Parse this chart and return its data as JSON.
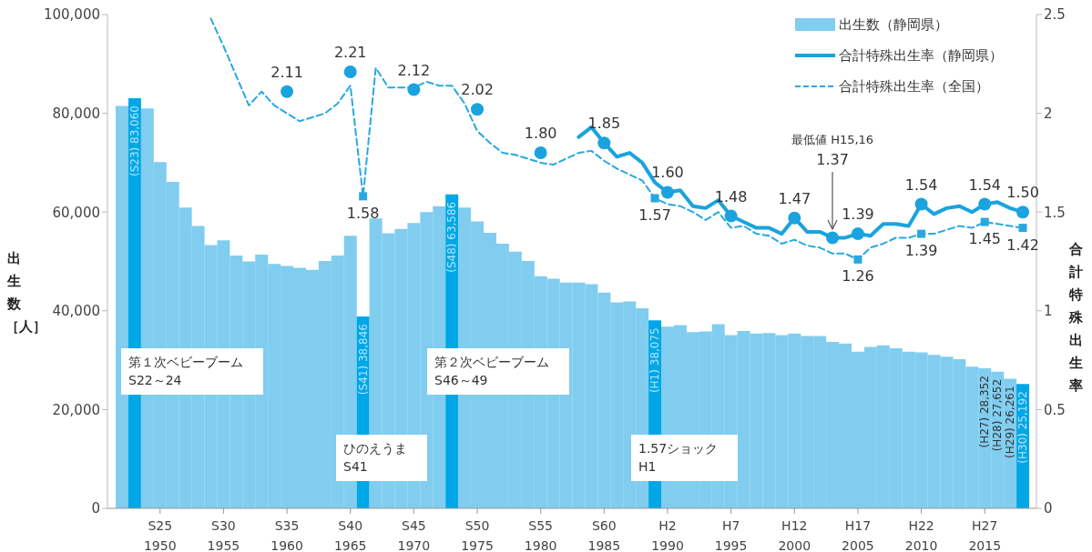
{
  "chart_data": {
    "type": "bar",
    "legend": "top right",
    "ylabel": "出生数［人］",
    "y2label": "合計特殊出生率",
    "categories": [
      null,
      null,
      null,
      "S25\n1950",
      null,
      null,
      null,
      null,
      "S30\n1955",
      null,
      null,
      null,
      null,
      "S35\n1960",
      null,
      null,
      null,
      null,
      "S40\n1965",
      null,
      null,
      null,
      null,
      "S45\n1970",
      null,
      null,
      null,
      null,
      "S50\n1975",
      null,
      null,
      null,
      null,
      "S55\n1980",
      null,
      null,
      null,
      null,
      "S60\n1985",
      null,
      null,
      null,
      null,
      "H2\n1990",
      null,
      null,
      null,
      null,
      "H7\n1995",
      null,
      null,
      null,
      null,
      "H12\n2000",
      null,
      null,
      null,
      null,
      "H17\n2005",
      null,
      null,
      null,
      null,
      "H22\n2010",
      null,
      null,
      null,
      null,
      "H27\n2015",
      null,
      null,
      null
    ],
    "ylim": [
      0,
      100000
    ],
    "yticks": [
      0,
      {
        "value": 20000,
        "label": "20,000"
      },
      {
        "value": 40000,
        "label": "40,000"
      },
      {
        "value": 60000,
        "label": "60,000"
      },
      {
        "value": 80000,
        "label": "80,000"
      },
      {
        "value": 100000,
        "label": "100,000"
      }
    ],
    "y2lim": [
      0,
      2.5
    ],
    "y2ticks": [
      0,
      0.5,
      1,
      1.5,
      2,
      2.5
    ],
    "series": [
      {
        "name": "出生数（静岡県）",
        "color": "#80cdf0",
        "colors": [
          "#80cdf0",
          "#00a7e6",
          "#80cdf0",
          "#80cdf0",
          "#80cdf0",
          "#80cdf0",
          "#80cdf0",
          "#80cdf0",
          "#80cdf0",
          "#80cdf0",
          "#80cdf0",
          "#80cdf0",
          "#80cdf0",
          "#80cdf0",
          "#80cdf0",
          "#80cdf0",
          "#80cdf0",
          "#80cdf0",
          "#80cdf0",
          "#00a7e6",
          "#80cdf0",
          "#80cdf0",
          "#80cdf0",
          "#80cdf0",
          "#80cdf0",
          "#80cdf0",
          "#00a7e6",
          "#80cdf0",
          "#80cdf0",
          "#80cdf0",
          "#80cdf0",
          "#80cdf0",
          "#80cdf0",
          "#80cdf0",
          "#80cdf0",
          "#80cdf0",
          "#80cdf0",
          "#80cdf0",
          "#80cdf0",
          "#80cdf0",
          "#80cdf0",
          "#80cdf0",
          "#00a7e6",
          "#80cdf0",
          "#80cdf0",
          "#80cdf0",
          "#80cdf0",
          "#80cdf0",
          "#80cdf0",
          "#80cdf0",
          "#80cdf0",
          "#80cdf0",
          "#80cdf0",
          "#80cdf0",
          "#80cdf0",
          "#80cdf0",
          "#80cdf0",
          "#80cdf0",
          "#80cdf0",
          "#80cdf0",
          "#80cdf0",
          "#80cdf0",
          "#80cdf0",
          "#80cdf0",
          "#80cdf0",
          "#80cdf0",
          "#80cdf0",
          "#80cdf0",
          "#80cdf0",
          "#80cdf0",
          "#80cdf0",
          "#00a7e6"
        ],
        "values": [
          81500,
          83060,
          81000,
          70100,
          66100,
          60900,
          57200,
          53300,
          54300,
          51200,
          50000,
          51400,
          49500,
          49100,
          48700,
          48300,
          50100,
          51200,
          55200,
          38846,
          58700,
          55700,
          56600,
          57800,
          60000,
          61200,
          63586,
          60900,
          58100,
          55800,
          53600,
          52000,
          50100,
          47000,
          46500,
          45700,
          45700,
          45400,
          43700,
          41700,
          41900,
          40500,
          38075,
          36800,
          37100,
          35700,
          35800,
          37300,
          35100,
          35900,
          35400,
          35500,
          35100,
          35400,
          34900,
          34900,
          33700,
          33400,
          31700,
          32700,
          33000,
          32400,
          31700,
          31600,
          31100,
          30700,
          30200,
          28700,
          28352,
          27652,
          26261,
          25192
        ],
        "value_labels": [
          null,
          "(S23) 83,060",
          null,
          null,
          null,
          null,
          null,
          null,
          null,
          null,
          null,
          null,
          null,
          null,
          null,
          null,
          null,
          null,
          null,
          "(S41) 38,846",
          null,
          null,
          null,
          null,
          null,
          null,
          "(S48) 63,586",
          null,
          null,
          null,
          null,
          null,
          null,
          null,
          null,
          null,
          null,
          null,
          null,
          null,
          null,
          null,
          "(H1) 38,075",
          null,
          null,
          null,
          null,
          null,
          null,
          null,
          null,
          null,
          null,
          null,
          null,
          null,
          null,
          null,
          null,
          null,
          null,
          null,
          null,
          null,
          null,
          null,
          null,
          null,
          "(H27) 28,352",
          "(H28) 27,652",
          "(H29) 26,261",
          "(H30) 25,192"
        ]
      },
      {
        "name": "合計特殊出生率（静岡県）",
        "type": "line",
        "axis": "y2",
        "color": "#1aa3de",
        "line_style": "solid",
        "values": [
          null,
          null,
          null,
          null,
          null,
          null,
          null,
          null,
          null,
          null,
          null,
          null,
          null,
          null,
          null,
          null,
          null,
          null,
          null,
          null,
          null,
          null,
          null,
          null,
          null,
          null,
          null,
          null,
          null,
          null,
          null,
          null,
          null,
          null,
          null,
          null,
          1.88,
          1.93,
          1.85,
          1.78,
          1.8,
          1.75,
          1.65,
          1.6,
          1.61,
          1.53,
          1.52,
          1.56,
          1.48,
          1.45,
          1.42,
          1.42,
          1.39,
          1.47,
          1.4,
          1.4,
          1.37,
          1.37,
          1.39,
          1.38,
          1.44,
          1.44,
          1.43,
          1.54,
          1.49,
          1.52,
          1.53,
          1.5,
          1.54,
          1.55,
          1.52,
          1.5
        ]
      },
      {
        "name": "合計特殊出生率（全国）",
        "type": "line",
        "axis": "y2",
        "color": "#29a8e0",
        "line_style": "dashed",
        "values": [
          null,
          null,
          null,
          null,
          null,
          null,
          null,
          2.48,
          2.34,
          2.19,
          2.04,
          2.11,
          2.04,
          2.0,
          1.96,
          1.98,
          2.0,
          2.05,
          2.14,
          1.58,
          2.23,
          2.13,
          2.13,
          2.13,
          2.16,
          2.14,
          2.14,
          2.05,
          1.91,
          1.85,
          1.8,
          1.79,
          1.77,
          1.75,
          1.74,
          1.77,
          1.8,
          1.81,
          1.76,
          1.72,
          1.69,
          1.66,
          1.57,
          1.54,
          1.53,
          1.5,
          1.46,
          1.5,
          1.42,
          1.43,
          1.39,
          1.38,
          1.34,
          1.36,
          1.33,
          1.32,
          1.29,
          1.29,
          1.26,
          1.32,
          1.34,
          1.37,
          1.37,
          1.39,
          1.39,
          1.41,
          1.43,
          1.42,
          1.45,
          1.44,
          1.43,
          1.42
        ]
      },
      {
        "type": "scatter",
        "axis": "y2",
        "color": "#1aa3de",
        "marker": "circle",
        "values": [
          null,
          null,
          null,
          null,
          null,
          null,
          null,
          null,
          null,
          null,
          null,
          null,
          null,
          2.11,
          null,
          null,
          null,
          null,
          2.21,
          null,
          null,
          null,
          null,
          2.12,
          null,
          null,
          null,
          null,
          2.02,
          null,
          null,
          null,
          null,
          1.8,
          null,
          null,
          null,
          null,
          1.85,
          null,
          null,
          null,
          null,
          1.6,
          null,
          null,
          null,
          null,
          1.48,
          null,
          null,
          null,
          null,
          1.47,
          null,
          null,
          1.37,
          null,
          1.39,
          null,
          null,
          null,
          null,
          1.54,
          null,
          null,
          null,
          null,
          1.54,
          null,
          null,
          1.5
        ],
        "value_labels": [
          null,
          null,
          null,
          null,
          null,
          null,
          null,
          null,
          null,
          null,
          null,
          null,
          null,
          "2.11",
          null,
          null,
          null,
          null,
          "2.21",
          null,
          null,
          null,
          null,
          "2.12",
          null,
          null,
          null,
          null,
          "2.02",
          null,
          null,
          null,
          null,
          "1.80",
          null,
          null,
          null,
          null,
          "1.85",
          null,
          null,
          null,
          null,
          "1.60",
          null,
          null,
          null,
          null,
          "1.48",
          null,
          null,
          null,
          null,
          "1.47",
          null,
          null,
          "1.37",
          null,
          "1.39",
          null,
          null,
          null,
          null,
          "1.54",
          null,
          null,
          null,
          null,
          "1.54",
          null,
          null,
          "1.50"
        ]
      },
      {
        "type": "scatter",
        "axis": "y2",
        "color": "#29a8e0",
        "marker": "square",
        "values": [
          null,
          null,
          null,
          null,
          null,
          null,
          null,
          null,
          null,
          null,
          null,
          null,
          null,
          null,
          null,
          null,
          null,
          null,
          null,
          1.58,
          null,
          null,
          null,
          null,
          null,
          null,
          null,
          null,
          null,
          null,
          null,
          null,
          null,
          null,
          null,
          null,
          null,
          null,
          null,
          null,
          null,
          null,
          1.57,
          null,
          null,
          null,
          null,
          null,
          null,
          null,
          null,
          null,
          null,
          null,
          null,
          null,
          null,
          null,
          1.26,
          null,
          null,
          null,
          null,
          1.39,
          null,
          null,
          null,
          null,
          1.45,
          null,
          null,
          1.42
        ],
        "value_labels": [
          null,
          null,
          null,
          null,
          null,
          null,
          null,
          null,
          null,
          null,
          null,
          null,
          null,
          null,
          null,
          null,
          null,
          null,
          null,
          "1.58",
          null,
          null,
          null,
          null,
          null,
          null,
          null,
          null,
          null,
          null,
          null,
          null,
          null,
          null,
          null,
          null,
          null,
          null,
          null,
          null,
          null,
          null,
          "1.57",
          null,
          null,
          null,
          null,
          null,
          null,
          null,
          null,
          null,
          null,
          null,
          null,
          null,
          null,
          null,
          "1.26",
          null,
          null,
          null,
          null,
          "1.39",
          null,
          null,
          null,
          null,
          "1.45",
          null,
          null,
          "1.42"
        ]
      }
    ],
    "annotations": [
      "第１次ベビーブーム\nS22～24",
      "ひのえうま\nS41",
      "第２次ベビーブーム\nS46～49",
      "1.57ショック\nH1",
      "最低値 H15,16"
    ]
  }
}
